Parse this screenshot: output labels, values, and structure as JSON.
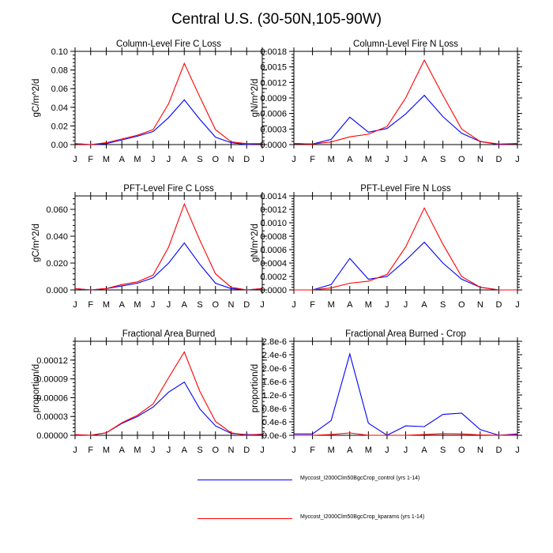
{
  "title": "Central U.S. (30-50N,105-90W)",
  "chart_data": [
    {
      "type": "line",
      "title": "Column-Level Fire C Loss",
      "ylabel": "gC/m^2/d",
      "ylim": [
        0,
        0.1
      ],
      "yticks": [
        0,
        0.02,
        0.04,
        0.06,
        0.08,
        0.1
      ],
      "ytick_labels": [
        "0.00",
        "0.02",
        "0.04",
        "0.06",
        "0.08",
        "0.10"
      ],
      "series": [
        {
          "name": "control",
          "values": [
            0.001,
            0.0,
            0.001,
            0.005,
            0.009,
            0.014,
            0.029,
            0.048,
            0.027,
            0.008,
            0.002,
            0.0,
            0.001
          ]
        },
        {
          "name": "kparams",
          "values": [
            0.001,
            0.0,
            0.002,
            0.006,
            0.01,
            0.016,
            0.044,
            0.087,
            0.051,
            0.016,
            0.003,
            0.001,
            0.001
          ]
        }
      ]
    },
    {
      "type": "line",
      "title": "Column-Level Fire N Loss",
      "ylabel": "gN/m^2/d",
      "ylim": [
        0,
        0.0018
      ],
      "yticks": [
        0,
        0.0003,
        0.0006,
        0.0009,
        0.0012,
        0.0015,
        0.0018
      ],
      "ytick_labels": [
        "0.0000",
        "0.0003",
        "0.0006",
        "0.0009",
        "0.0012",
        "0.0015",
        "0.0018"
      ],
      "series": [
        {
          "name": "control",
          "values": [
            2e-05,
            1e-05,
            0.0001,
            0.00053,
            0.00024,
            0.00031,
            0.00059,
            0.00095,
            0.00054,
            0.00022,
            6e-05,
            0.0,
            2e-05
          ]
        },
        {
          "name": "kparams",
          "values": [
            2e-05,
            1e-05,
            5e-05,
            0.00015,
            0.0002,
            0.00035,
            0.0009,
            0.00163,
            0.00095,
            0.0003,
            6e-05,
            1e-05,
            2e-05
          ]
        }
      ]
    },
    {
      "type": "line",
      "title": "PFT-Level Fire C Loss",
      "ylabel": "gC/m^2/d",
      "ylim": [
        0,
        0.07
      ],
      "yticks": [
        0,
        0.02,
        0.04,
        0.06
      ],
      "ytick_labels": [
        "0.000",
        "0.020",
        "0.040",
        "0.060"
      ],
      "series": [
        {
          "name": "control",
          "values": [
            0.001,
            0.0,
            0.001,
            0.003,
            0.005,
            0.009,
            0.02,
            0.035,
            0.019,
            0.005,
            0.001,
            0.0,
            0.001
          ]
        },
        {
          "name": "kparams",
          "values": [
            0.001,
            0.0,
            0.001,
            0.004,
            0.006,
            0.011,
            0.032,
            0.064,
            0.037,
            0.012,
            0.002,
            0.0,
            0.001
          ]
        }
      ]
    },
    {
      "type": "line",
      "title": "PFT-Level Fire N Loss",
      "ylabel": "gN/m^2/d",
      "ylim": [
        0,
        0.0014
      ],
      "yticks": [
        0,
        0.0002,
        0.0004,
        0.0006,
        0.0008,
        0.001,
        0.0012,
        0.0014
      ],
      "ytick_labels": [
        "0.0000",
        "0.0002",
        "0.0004",
        "0.0006",
        "0.0008",
        "0.0010",
        "0.0012",
        "0.0014"
      ],
      "series": [
        {
          "name": "control",
          "values": [
            0.0,
            0.0,
            8e-05,
            0.00047,
            0.00016,
            0.0002,
            0.00044,
            0.00071,
            0.0004,
            0.00016,
            4e-05,
            0.0,
            0.0
          ]
        },
        {
          "name": "kparams",
          "values": [
            0.0,
            0.0,
            3e-05,
            0.0001,
            0.00013,
            0.00023,
            0.00064,
            0.00122,
            0.00068,
            0.0002,
            4e-05,
            0.0,
            0.0
          ]
        }
      ]
    },
    {
      "type": "line",
      "title": "Fractional Area Burned",
      "ylabel": "proportion/d",
      "ylim": [
        0,
        0.00015
      ],
      "yticks": [
        0,
        3e-05,
        6e-05,
        9e-05,
        0.00012
      ],
      "ytick_labels": [
        "0.00000",
        "0.00003",
        "0.00006",
        "0.00009",
        "0.00012"
      ],
      "series": [
        {
          "name": "control",
          "values": [
            1e-06,
            0.0,
            4e-06,
            1.9e-05,
            3e-05,
            4.5e-05,
            6.9e-05,
            8.5e-05,
            4.2e-05,
            1.5e-05,
            3e-06,
            1e-06,
            1e-06
          ]
        },
        {
          "name": "kparams",
          "values": [
            1e-06,
            0.0,
            4e-06,
            2e-05,
            3.2e-05,
            5e-05,
            9.2e-05,
            0.000133,
            7e-05,
            2.2e-05,
            4e-06,
            0.0,
            2e-06
          ]
        }
      ]
    },
    {
      "type": "line",
      "title": "Fractional Area Burned - Crop",
      "ylabel": "proportion/d",
      "ylim": [
        0,
        2.8e-06
      ],
      "yticks": [
        0,
        4e-07,
        8e-07,
        1.2e-06,
        1.6e-06,
        2e-06,
        2.4e-06,
        2.8e-06
      ],
      "ytick_labels": [
        "0.0e-6",
        "0.4e-6",
        "0.8e-6",
        "1.2e-6",
        "1.6e-6",
        "2.0e-6",
        "2.4e-6",
        "2.8e-6"
      ],
      "series": [
        {
          "name": "control",
          "values": [
            4e-08,
            4e-08,
            4.4e-07,
            2.42e-06,
            3.6e-07,
            0.0,
            2.8e-07,
            2.6e-07,
            6.2e-07,
            6.6e-07,
            1.7e-07,
            0.0,
            4e-08
          ]
        },
        {
          "name": "kparams",
          "values": [
            0.0,
            0.0,
            2e-08,
            7e-08,
            0.0,
            0.0,
            0.0,
            2e-08,
            5e-08,
            4e-08,
            1e-08,
            0.0,
            1e-08
          ]
        }
      ]
    }
  ],
  "x_tick_labels": [
    "J",
    "F",
    "M",
    "A",
    "M",
    "J",
    "J",
    "A",
    "S",
    "O",
    "N",
    "D",
    "J"
  ],
  "legend": [
    {
      "label": "Myccost_I2000Clm50BgcCrop_control (yrs 1-14)",
      "color": "#0000ff"
    },
    {
      "label": "Myccost_I2000Clm50BgcCrop_kparams (yrs 1-14)",
      "color": "#ff0000"
    }
  ]
}
